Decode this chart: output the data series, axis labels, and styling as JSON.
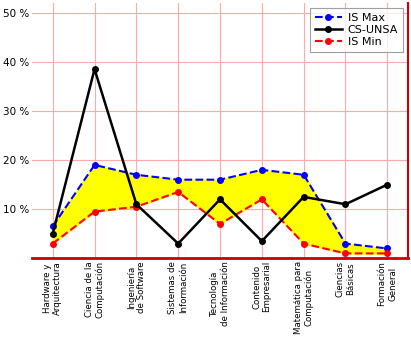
{
  "categories": [
    "Hardware y\nArquitectura",
    "Ciencia de la\nComputación",
    "Ingeniería\nde Software",
    "Sistemas de\nInformación",
    "Tecnología\nde Información",
    "Contenido\nEmpresarial",
    "Matemática para\nComputación",
    "Ciencias\nBásicas",
    "Formación\nGeneral"
  ],
  "IS_Max": [
    6.5,
    19,
    17,
    16,
    16,
    18,
    17,
    3,
    2
  ],
  "IS_Min": [
    3,
    9.5,
    10.5,
    13.5,
    7,
    12,
    3,
    1,
    1
  ],
  "CS_UNSA": [
    5,
    38.5,
    11,
    3,
    12,
    3.5,
    12.5,
    11,
    15
  ],
  "IS_Max_color": "#0000ff",
  "IS_Min_color": "#ff0000",
  "CS_UNSA_color": "#000000",
  "fill_color": "#ffff00",
  "ylim": [
    0,
    52
  ],
  "yticks": [
    10,
    20,
    30,
    40,
    50
  ],
  "ytick_labels": [
    "10 %",
    "20 %",
    "30 %",
    "40 %",
    "50 %"
  ],
  "grid_color": "#ffaaaa",
  "background_color": "#ffffff",
  "legend_labels": [
    "IS Max",
    "CS-UNSA",
    "IS Min"
  ],
  "spine_color": "#cc0000"
}
